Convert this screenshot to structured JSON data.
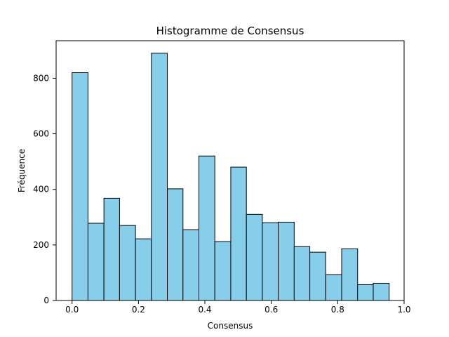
{
  "chart_data": {
    "type": "bar",
    "subtype": "histogram",
    "title": "Histogramme de Consensus",
    "xlabel": "Consensus",
    "ylabel": "Fréquence",
    "xlim": [
      -0.048,
      1.0
    ],
    "ylim": [
      0,
      935
    ],
    "grid": false,
    "legend": "none",
    "bins": [
      {
        "left": 0.0,
        "right": 0.048,
        "value": 820
      },
      {
        "left": 0.048,
        "right": 0.096,
        "value": 278
      },
      {
        "left": 0.096,
        "right": 0.143,
        "value": 368
      },
      {
        "left": 0.143,
        "right": 0.191,
        "value": 270
      },
      {
        "left": 0.191,
        "right": 0.239,
        "value": 222
      },
      {
        "left": 0.239,
        "right": 0.287,
        "value": 890
      },
      {
        "left": 0.287,
        "right": 0.334,
        "value": 402
      },
      {
        "left": 0.334,
        "right": 0.382,
        "value": 255
      },
      {
        "left": 0.382,
        "right": 0.43,
        "value": 520
      },
      {
        "left": 0.43,
        "right": 0.478,
        "value": 212
      },
      {
        "left": 0.478,
        "right": 0.525,
        "value": 480
      },
      {
        "left": 0.525,
        "right": 0.573,
        "value": 310
      },
      {
        "left": 0.573,
        "right": 0.621,
        "value": 280
      },
      {
        "left": 0.621,
        "right": 0.669,
        "value": 282
      },
      {
        "left": 0.669,
        "right": 0.716,
        "value": 194
      },
      {
        "left": 0.716,
        "right": 0.764,
        "value": 174
      },
      {
        "left": 0.764,
        "right": 0.812,
        "value": 93
      },
      {
        "left": 0.812,
        "right": 0.86,
        "value": 186
      },
      {
        "left": 0.86,
        "right": 0.907,
        "value": 57
      },
      {
        "left": 0.907,
        "right": 0.955,
        "value": 62
      }
    ],
    "x_ticks": [
      {
        "value": 0.0,
        "label": "0.0"
      },
      {
        "value": 0.2,
        "label": "0.2"
      },
      {
        "value": 0.4,
        "label": "0.4"
      },
      {
        "value": 0.6,
        "label": "0.6"
      },
      {
        "value": 0.8,
        "label": "0.8"
      },
      {
        "value": 1.0,
        "label": "1.0"
      }
    ],
    "y_ticks": [
      {
        "value": 0,
        "label": "0"
      },
      {
        "value": 200,
        "label": "200"
      },
      {
        "value": 400,
        "label": "400"
      },
      {
        "value": 600,
        "label": "600"
      },
      {
        "value": 800,
        "label": "800"
      }
    ],
    "colors": {
      "bar_fill": "#87CEEB",
      "bar_edge": "#000000",
      "axis": "#000000",
      "background": "#FFFFFF"
    }
  }
}
